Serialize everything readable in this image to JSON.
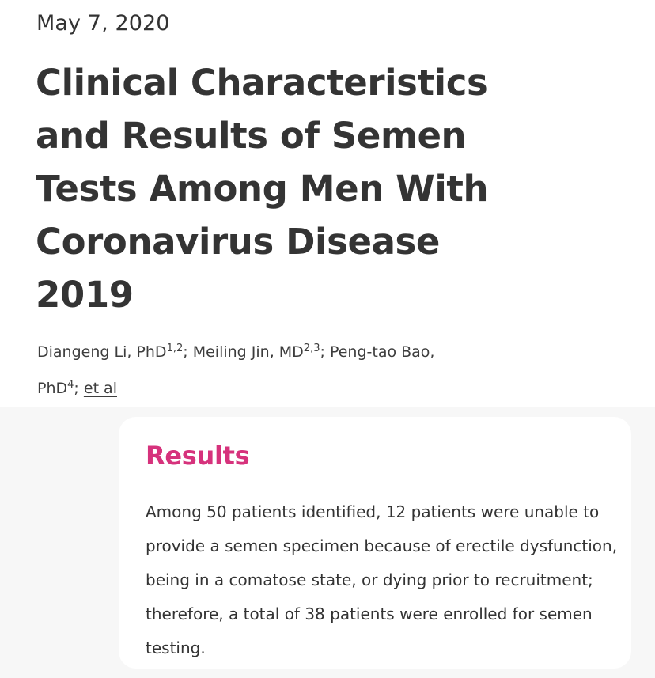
{
  "article": {
    "date": "May 7, 2020",
    "title": "Clinical Characteristics and Results of Semen Tests Among Men With Coronavirus Disease 2019",
    "authors": [
      {
        "name": "Diangeng Li, PhD",
        "affiliations": "1,2",
        "separator": "; "
      },
      {
        "name": "Meiling Jin, MD",
        "affiliations": "2,3",
        "separator": "; "
      },
      {
        "name": "Peng-tao Bao, PhD",
        "affiliations": "4",
        "separator": "; "
      }
    ],
    "et_al_label": "et al"
  },
  "results": {
    "heading": "Results",
    "text": "Among 50 patients identified, 12 patients were unable to provide a semen specimen because of erectile dysfunction, being in a comatose state, or dying prior to recruitment; therefore, a total of 38 patients were enrolled for semen testing."
  },
  "colors": {
    "results_heading": "#d6327c",
    "title_text": "#343434",
    "body_text": "#333333",
    "lower_background": "#f7f7f7"
  }
}
